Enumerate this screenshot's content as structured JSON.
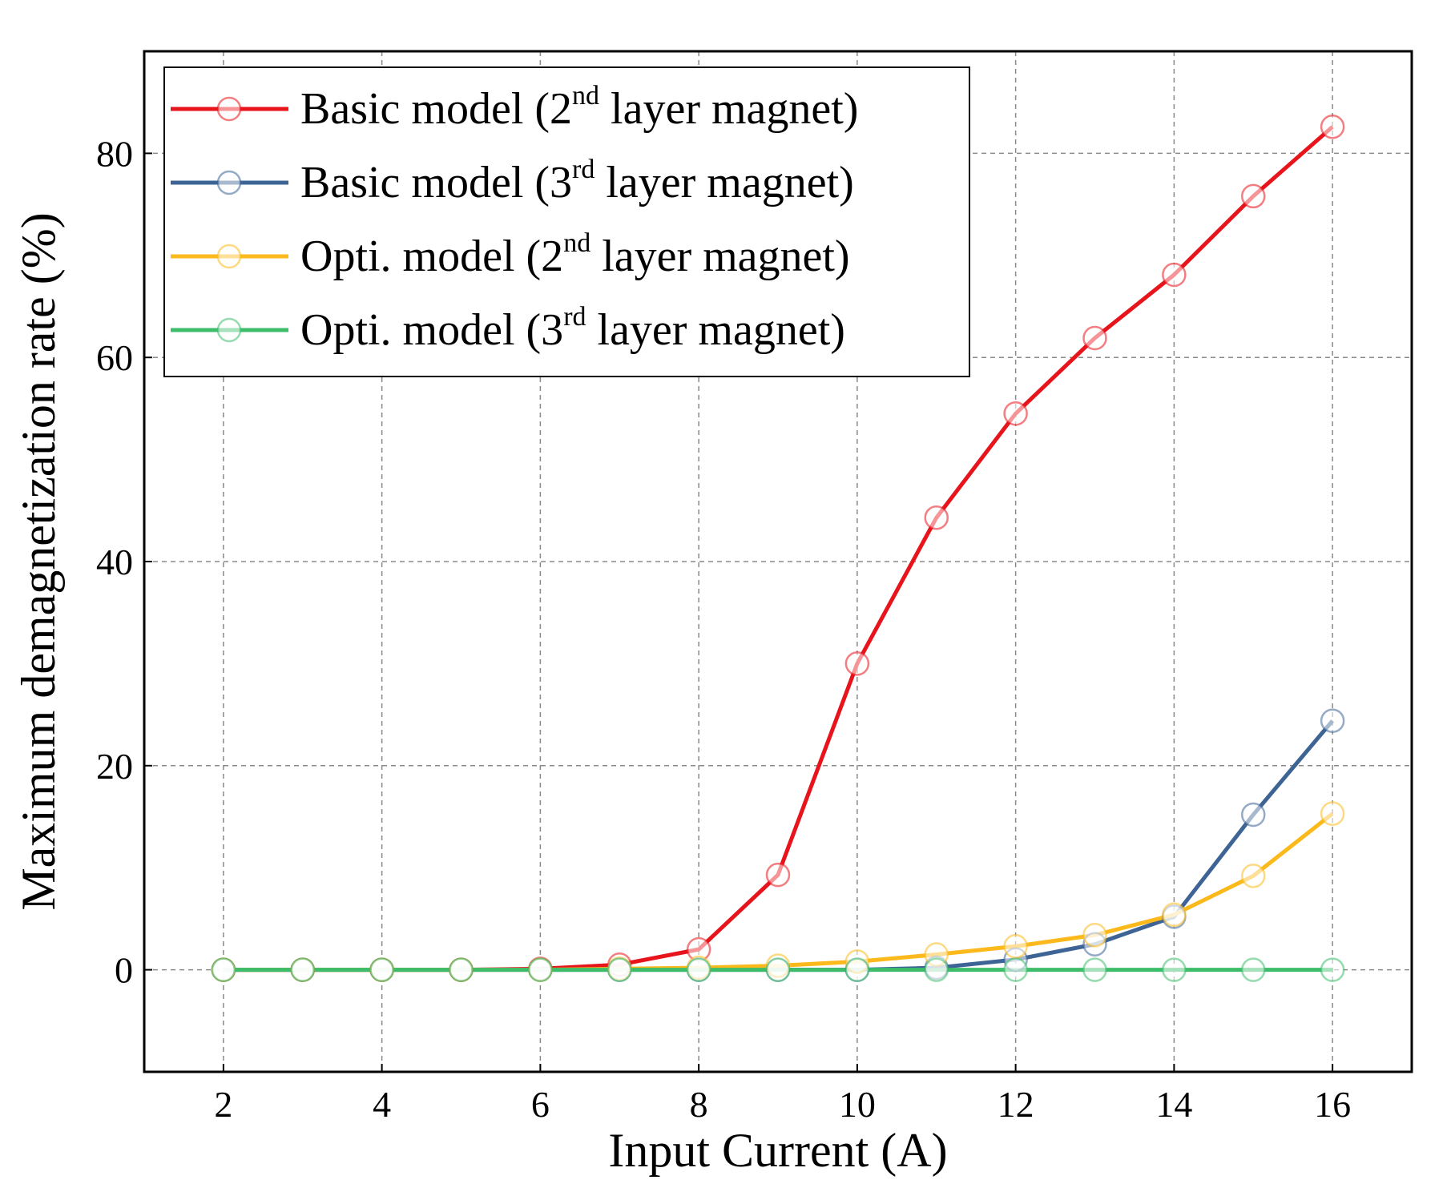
{
  "chart_data": {
    "type": "line",
    "xlabel": "Input Current (A)",
    "ylabel": "Maximum demagnetization rate (%)",
    "xlim": [
      1,
      17
    ],
    "ylim": [
      -10,
      90
    ],
    "xticks": [
      2,
      4,
      6,
      8,
      10,
      12,
      14,
      16
    ],
    "yticks": [
      0,
      20,
      40,
      60,
      80
    ],
    "grid": true,
    "legend_position": "top-left",
    "x": [
      2,
      3,
      4,
      5,
      6,
      7,
      8,
      9,
      10,
      11,
      12,
      13,
      14,
      15,
      16
    ],
    "series": [
      {
        "name_prefix": "Basic model (2",
        "name_sup": "nd",
        "name_suffix": " layer magnet)",
        "color": "#e8141c",
        "values": [
          0,
          0,
          0,
          0,
          0.1,
          0.5,
          2,
          9.3,
          30,
          44.3,
          54.5,
          61.9,
          68.1,
          75.8,
          82.6
        ]
      },
      {
        "name_prefix": "Basic model (3",
        "name_sup": "rd",
        "name_suffix": " layer magnet)",
        "color": "#3d6495",
        "values": [
          0,
          0,
          0,
          0,
          0,
          0,
          0,
          0,
          0,
          0.2,
          1,
          2.5,
          5.2,
          15.2,
          24.4
        ]
      },
      {
        "name_prefix": "Opti. model (2",
        "name_sup": "nd",
        "name_suffix": " layer magnet)",
        "color": "#fbb91c",
        "values": [
          0,
          0,
          0,
          0,
          0,
          0.1,
          0.2,
          0.4,
          0.8,
          1.5,
          2.3,
          3.4,
          5.4,
          9.2,
          15.3
        ]
      },
      {
        "name_prefix": "Opti. model (3",
        "name_sup": "rd",
        "name_suffix": " layer magnet)",
        "color": "#3dbd6a",
        "values": [
          0,
          0,
          0,
          0,
          0,
          0,
          0,
          0,
          0,
          0,
          0,
          0,
          0,
          0,
          0
        ]
      }
    ]
  }
}
